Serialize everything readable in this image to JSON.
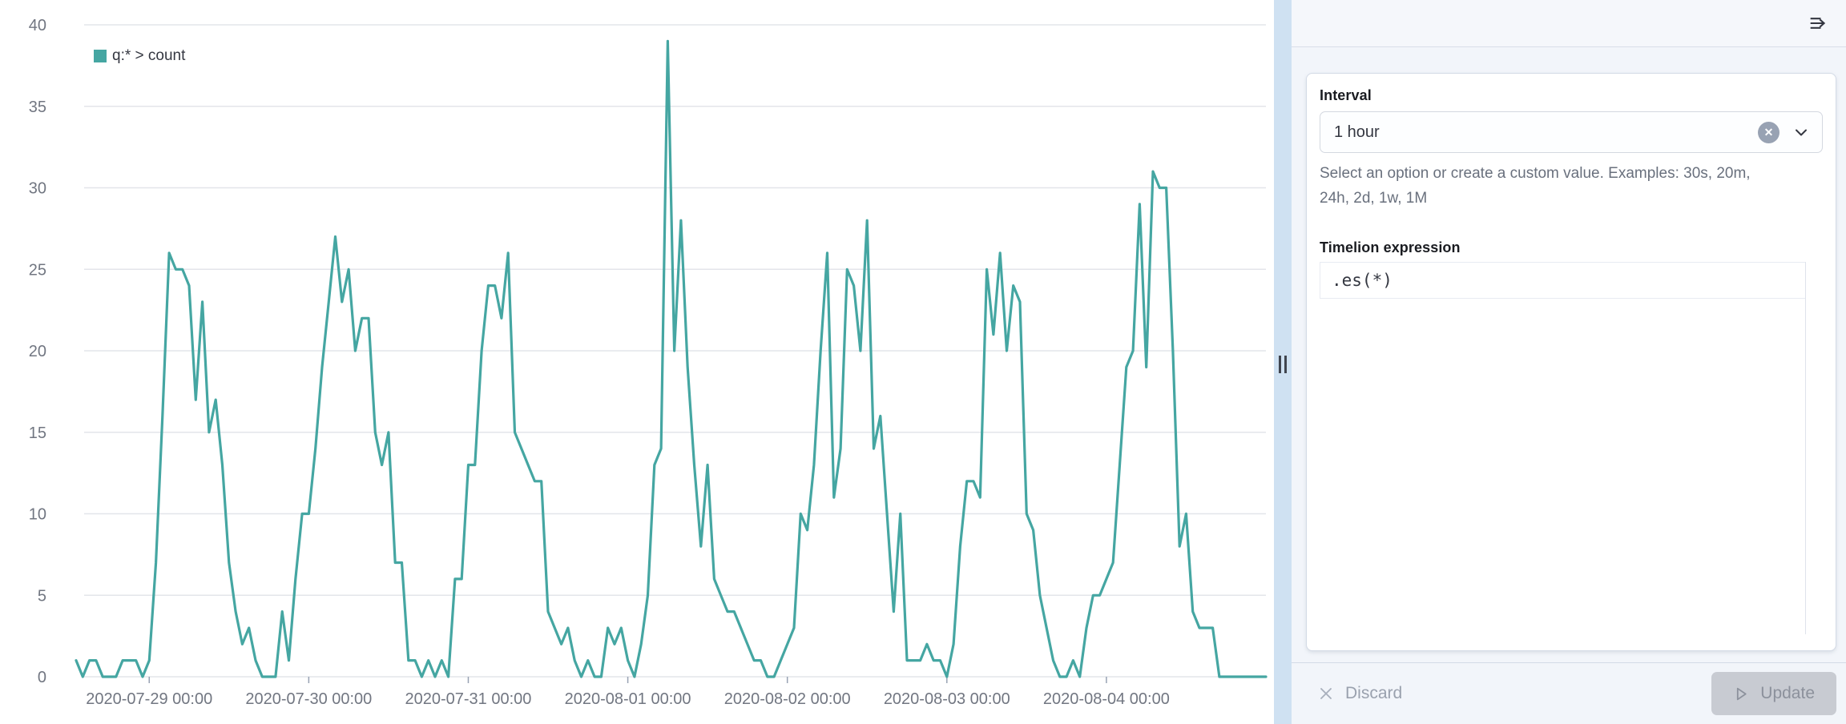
{
  "colors": {
    "series": "#45A6A2",
    "grid": "#E3E5EA",
    "axis_text": "#717681",
    "tick": "#98A2B3"
  },
  "chart_data": {
    "type": "line",
    "series": [
      {
        "name": "q:* > count",
        "color": "#45A6A2",
        "interval": "1 hour",
        "start": "2020-07-28 13:00",
        "values": [
          1,
          0,
          1,
          1,
          0,
          0,
          0,
          1,
          1,
          1,
          0,
          1,
          7,
          16,
          26,
          25,
          25,
          24,
          17,
          23,
          15,
          17,
          13,
          7,
          4,
          2,
          3,
          1,
          0,
          0,
          0,
          4,
          1,
          6,
          10,
          10,
          14,
          19,
          23,
          27,
          23,
          25,
          20,
          22,
          22,
          15,
          13,
          15,
          7,
          7,
          1,
          1,
          0,
          1,
          0,
          1,
          0,
          6,
          6,
          13,
          13,
          20,
          24,
          24,
          22,
          26,
          15,
          14,
          13,
          12,
          12,
          4,
          3,
          2,
          3,
          1,
          0,
          1,
          0,
          0,
          3,
          2,
          3,
          1,
          0,
          2,
          5,
          13,
          14,
          39,
          20,
          28,
          19,
          13,
          8,
          13,
          6,
          5,
          4,
          4,
          3,
          2,
          1,
          1,
          0,
          0,
          1,
          2,
          3,
          10,
          9,
          13,
          20,
          26,
          11,
          14,
          25,
          24,
          20,
          28,
          14,
          16,
          10,
          4,
          10,
          1,
          1,
          1,
          2,
          1,
          1,
          0,
          2,
          8,
          12,
          12,
          11,
          25,
          21,
          26,
          20,
          24,
          23,
          10,
          9,
          5,
          3,
          1,
          0,
          0,
          1,
          0,
          3,
          5,
          5,
          6,
          7,
          13,
          19,
          20,
          29,
          19,
          31,
          30,
          30,
          20,
          8,
          10,
          4,
          3,
          3,
          3,
          0,
          0,
          0,
          0,
          0,
          0,
          0,
          0
        ]
      }
    ],
    "y_ticks": [
      0,
      5,
      10,
      15,
      20,
      25,
      30,
      35,
      40
    ],
    "ylim": [
      0,
      40
    ],
    "x_tick_labels": [
      "2020-07-29 00:00",
      "2020-07-30 00:00",
      "2020-07-31 00:00",
      "2020-08-01 00:00",
      "2020-08-02 00:00",
      "2020-08-03 00:00",
      "2020-08-04 00:00"
    ],
    "x_tick_indices": [
      11,
      35,
      59,
      83,
      107,
      131,
      155
    ],
    "legend": {
      "label": "q:* > count",
      "position": "top-left"
    },
    "grid": "horizontal-only"
  },
  "side_panel": {
    "collapse_icon": "menu-right-icon",
    "interval": {
      "label": "Interval",
      "value": "1 hour",
      "help_lines": [
        "Select an option or create a custom value. Examples: 30s, 20m,",
        "24h, 2d, 1w, 1M"
      ]
    },
    "expression": {
      "label": "Timelion expression",
      "value": ".es(*)"
    },
    "footer": {
      "discard_label": "Discard",
      "update_label": "Update"
    }
  }
}
